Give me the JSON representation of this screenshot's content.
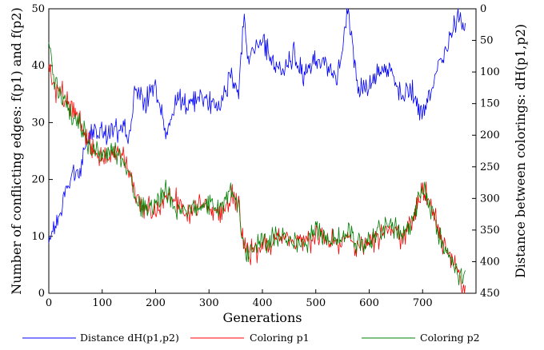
{
  "chart_data": {
    "type": "line",
    "xlabel": "Generations",
    "ylabel_left": "Number of conflicting edges: f(p1) and f(p2)",
    "ylabel_right": "Distance between colorings: dH(p1,p2)",
    "xlim": [
      0,
      800
    ],
    "ylim_left": [
      0,
      50
    ],
    "ylim_right": [
      450,
      0
    ],
    "x_ticks": [
      "0",
      "100",
      "200",
      "300",
      "400",
      "500",
      "600",
      "700"
    ],
    "y_left_ticks": [
      "0",
      "10",
      "20",
      "30",
      "40",
      "50"
    ],
    "y_right_ticks": [
      "0",
      "50",
      "100",
      "150",
      "200",
      "250",
      "300",
      "350",
      "400",
      "450"
    ],
    "grid": false,
    "legend_position": "bottom",
    "series": [
      {
        "name": "Distance dH(p1,p2)",
        "axis": "right",
        "color": "#0000ff",
        "x": [
          0,
          20,
          40,
          60,
          80,
          100,
          120,
          140,
          150,
          160,
          170,
          180,
          200,
          220,
          240,
          260,
          280,
          300,
          320,
          340,
          355,
          365,
          375,
          400,
          420,
          440,
          460,
          480,
          500,
          520,
          540,
          560,
          580,
          600,
          620,
          640,
          660,
          680,
          700,
          720,
          740,
          760,
          770,
          780
        ],
        "values": [
          370,
          330,
          270,
          250,
          190,
          200,
          195,
          190,
          200,
          130,
          130,
          150,
          120,
          200,
          140,
          150,
          140,
          145,
          155,
          110,
          130,
          20,
          80,
          50,
          80,
          100,
          70,
          110,
          80,
          90,
          110,
          5,
          130,
          120,
          100,
          100,
          135,
          130,
          170,
          110,
          70,
          30,
          10,
          30
        ]
      },
      {
        "name": "Coloring p1",
        "axis": "left",
        "color": "#ff0000",
        "x": [
          0,
          10,
          20,
          40,
          60,
          80,
          100,
          120,
          140,
          150,
          160,
          170,
          180,
          200,
          220,
          240,
          260,
          280,
          300,
          320,
          340,
          355,
          365,
          375,
          400,
          420,
          440,
          460,
          480,
          500,
          520,
          540,
          560,
          580,
          600,
          620,
          640,
          660,
          680,
          700,
          720,
          740,
          760,
          770,
          780
        ],
        "values": [
          40,
          35,
          36,
          33,
          30,
          25,
          24,
          24,
          25,
          22,
          18,
          16,
          15,
          14,
          17,
          16,
          14,
          16,
          15,
          14,
          17,
          16,
          8,
          7,
          8,
          9,
          10,
          9,
          9,
          10,
          9,
          9,
          10,
          8,
          9,
          10,
          11,
          10,
          12,
          18,
          15,
          8,
          5,
          3,
          0
        ]
      },
      {
        "name": "Coloring p2",
        "axis": "left",
        "color": "#008000",
        "x": [
          0,
          10,
          20,
          40,
          60,
          80,
          100,
          120,
          140,
          150,
          160,
          170,
          180,
          200,
          220,
          240,
          260,
          280,
          300,
          320,
          340,
          355,
          365,
          375,
          400,
          420,
          440,
          460,
          480,
          500,
          520,
          540,
          560,
          580,
          600,
          620,
          640,
          660,
          680,
          700,
          720,
          740,
          760,
          770,
          780
        ],
        "values": [
          44,
          38,
          35,
          32,
          29,
          26,
          24,
          25,
          23,
          22,
          17,
          15,
          16,
          15,
          18,
          15,
          15,
          15,
          16,
          15,
          18,
          16,
          8,
          7,
          9,
          10,
          10,
          9,
          9,
          11,
          9,
          9,
          11,
          9,
          9,
          11,
          12,
          10,
          12,
          19,
          14,
          8,
          5,
          3,
          3
        ]
      }
    ]
  }
}
